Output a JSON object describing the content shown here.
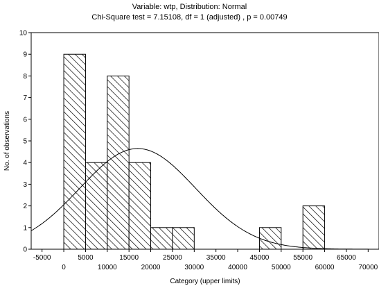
{
  "chart_data": {
    "type": "bar",
    "title": "Variable: wtp, Distribution: Normal",
    "subtitle": "Chi-Square test = 7.15108, df = 1 (adjusted) , p = 0.00749",
    "xlabel": "Category (upper limits)",
    "ylabel": "No. of observations",
    "xlim": [
      -7500,
      72500
    ],
    "ylim": [
      0,
      10
    ],
    "x_ticks_top_row": [
      "-5000",
      "5000",
      "15000",
      "25000",
      "35000",
      "45000",
      "55000",
      "65000"
    ],
    "x_ticks_bottom_row": [
      "0",
      "10000",
      "20000",
      "30000",
      "40000",
      "50000",
      "60000",
      "70000"
    ],
    "x_tick_values_top_row": [
      -5000,
      5000,
      15000,
      25000,
      35000,
      45000,
      55000,
      65000
    ],
    "x_tick_values_bottom_row": [
      0,
      10000,
      20000,
      30000,
      40000,
      50000,
      60000,
      70000
    ],
    "y_ticks": [
      0,
      1,
      2,
      3,
      4,
      5,
      6,
      7,
      8,
      9,
      10
    ],
    "bin_width": 5000,
    "bins_upper_limits": [
      5000,
      10000,
      15000,
      20000,
      25000,
      30000,
      35000,
      40000,
      45000,
      50000,
      55000,
      60000,
      65000,
      70000
    ],
    "values": [
      9,
      4,
      8,
      4,
      1,
      1,
      0,
      0,
      0,
      1,
      0,
      2,
      0,
      0
    ],
    "normal_curve": {
      "mean": 17000,
      "sd": 13300,
      "n": 31
    },
    "grid": false
  }
}
